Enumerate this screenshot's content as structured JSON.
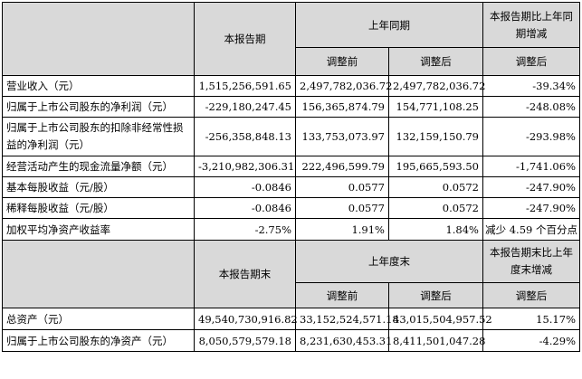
{
  "header1": {
    "current": "本报告期",
    "prior": "上年同期",
    "change": "本报告期比上年同期增减",
    "before": "调整前",
    "after": "调整后",
    "change_after": "调整后"
  },
  "rows1": [
    {
      "label": "营业收入（元）",
      "current": "1,515,256,591.65",
      "before": "2,497,782,036.72",
      "after": "2,497,782,036.72",
      "change": "-39.34%"
    },
    {
      "label": "归属于上市公司股东的净利润（元）",
      "current": "-229,180,247.45",
      "before": "156,365,874.79",
      "after": "154,771,108.25",
      "change": "-248.08%"
    },
    {
      "label": "归属于上市公司股东的扣除非经常性损益的净利润（元）",
      "current": "-256,358,848.13",
      "before": "133,753,073.97",
      "after": "132,159,150.79",
      "change": "-293.98%"
    },
    {
      "label": "经营活动产生的现金流量净额（元）",
      "current": "-3,210,982,306.31",
      "before": "222,496,599.79",
      "after": "195,665,593.50",
      "change": "-1,741.06%"
    },
    {
      "label": "基本每股收益（元/股）",
      "current": "-0.0846",
      "before": "0.0577",
      "after": "0.0572",
      "change": "-247.90%"
    },
    {
      "label": "稀释每股收益（元/股）",
      "current": "-0.0846",
      "before": "0.0577",
      "after": "0.0572",
      "change": "-247.90%"
    },
    {
      "label": "加权平均净资产收益率",
      "current": "-2.75%",
      "before": "1.91%",
      "after": "1.84%",
      "change": "减少 4.59 个百分点"
    }
  ],
  "header2": {
    "current": "本报告期末",
    "prior": "上年度末",
    "change": "本报告期末比上年度末增减",
    "before": "调整前",
    "after": "调整后",
    "change_after": "调整后"
  },
  "rows2": [
    {
      "label": "总资产（元）",
      "current": "49,540,730,916.82",
      "before": "33,152,524,571.18",
      "after": "43,015,504,957.52",
      "change": "15.17%"
    },
    {
      "label": "归属于上市公司股东的净资产（元）",
      "current": "8,050,579,579.18",
      "before": "8,231,630,453.31",
      "after": "8,411,501,047.28",
      "change": "-4.29%"
    }
  ]
}
